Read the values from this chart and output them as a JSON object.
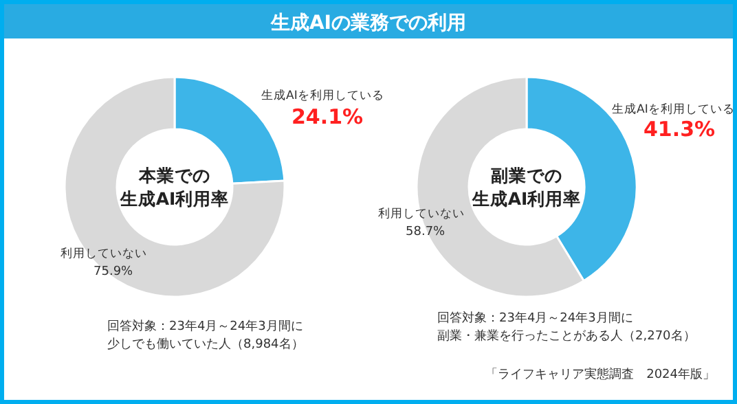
{
  "chart_data": [
    {
      "type": "donut",
      "title": "生成AIの業務での利用",
      "subtitle": "本業での生成AI利用率",
      "categories": [
        "生成AIを利用している",
        "利用していない"
      ],
      "values": [
        24.1,
        75.9
      ],
      "value_labels": [
        "24.1%",
        "75.9%"
      ],
      "colors": [
        "#3db5e8",
        "#d9d9d9"
      ],
      "legend": false,
      "annotations": [
        "回答対象：23年4月～24年3月間に少しでも働いていた人（8,984名）"
      ]
    },
    {
      "type": "donut",
      "subtitle": "副業での生成AI利用率",
      "categories": [
        "生成AIを利用している",
        "利用していない"
      ],
      "values": [
        41.3,
        58.7
      ],
      "value_labels": [
        "41.3%",
        "58.7%"
      ],
      "colors": [
        "#3db5e8",
        "#d9d9d9"
      ],
      "legend": false,
      "annotations": [
        "回答対象：23年4月～24年3月間に副業・兼業を行ったことがある人（2,270名）",
        "「ライフキャリア実態調査　2024年版」"
      ]
    }
  ]
}
